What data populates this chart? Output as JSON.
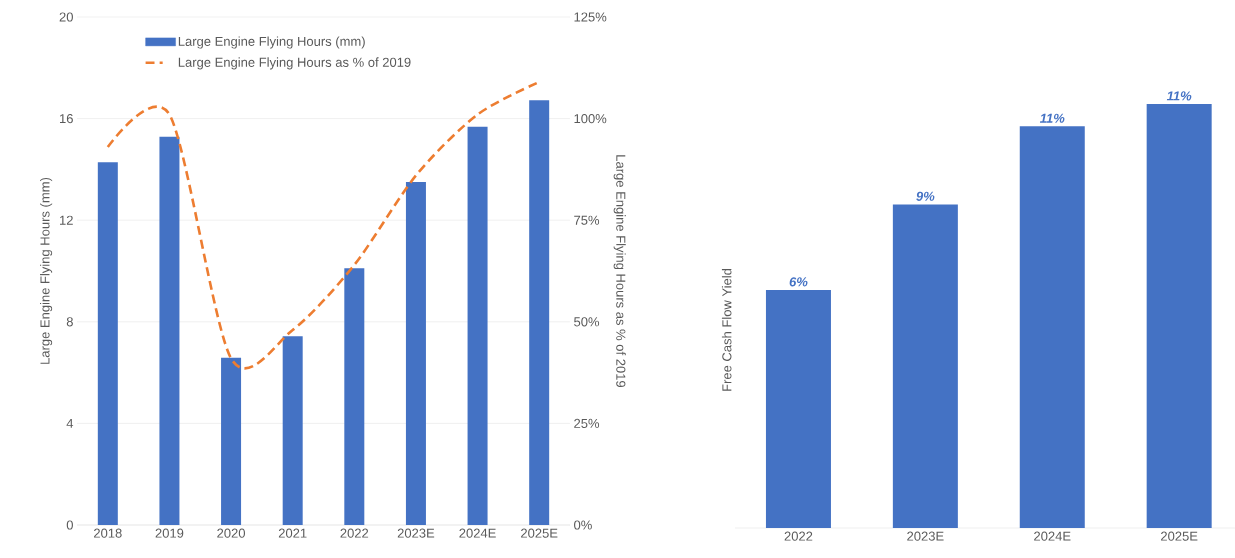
{
  "chart_data": [
    {
      "type": "bar",
      "categories": [
        "2018",
        "2019",
        "2020",
        "2021",
        "2022",
        "2023E",
        "2024E",
        "2025E"
      ],
      "series": [
        {
          "name": "Large Engine Flying Hours (mm)",
          "color": "#4472c4",
          "values": [
            14.28,
            15.29,
            6.58,
            7.43,
            10.11,
            13.5,
            15.68,
            16.72
          ]
        },
        {
          "name": "Large Engine Flying Hours as % of 2019",
          "type": "line",
          "axis": "y2",
          "color": "#ed7d31",
          "line_style": "dashed",
          "values": [
            93,
            101,
            41,
            48,
            64,
            86,
            101,
            109
          ]
        }
      ],
      "ylabel": "Large Engine Flying Hours (mm)",
      "y2label": "Large Engine Flying Hours as % of 2019",
      "ylim": [
        0,
        20
      ],
      "yticks": [
        0,
        4,
        8,
        12,
        16,
        20
      ],
      "y2lim": [
        0,
        125
      ],
      "y2ticks": [
        {
          "value": 0,
          "label": "0%"
        },
        {
          "value": 25,
          "label": "25%"
        },
        {
          "value": 50,
          "label": "50%"
        },
        {
          "value": 75,
          "label": "75%"
        },
        {
          "value": 100,
          "label": "100%"
        },
        {
          "value": 125,
          "label": "125%"
        }
      ],
      "grid": "y",
      "legend": "top"
    },
    {
      "type": "bar",
      "categories": [
        "2022",
        "2023E",
        "2024E",
        "2025E"
      ],
      "values": [
        6.4,
        8.7,
        10.8,
        11.4
      ],
      "color": "#4472c4",
      "value_labels": [
        "6%",
        "9%",
        "11%",
        "11%"
      ],
      "ylabel": "Free Cash Flow Yield"
    }
  ]
}
